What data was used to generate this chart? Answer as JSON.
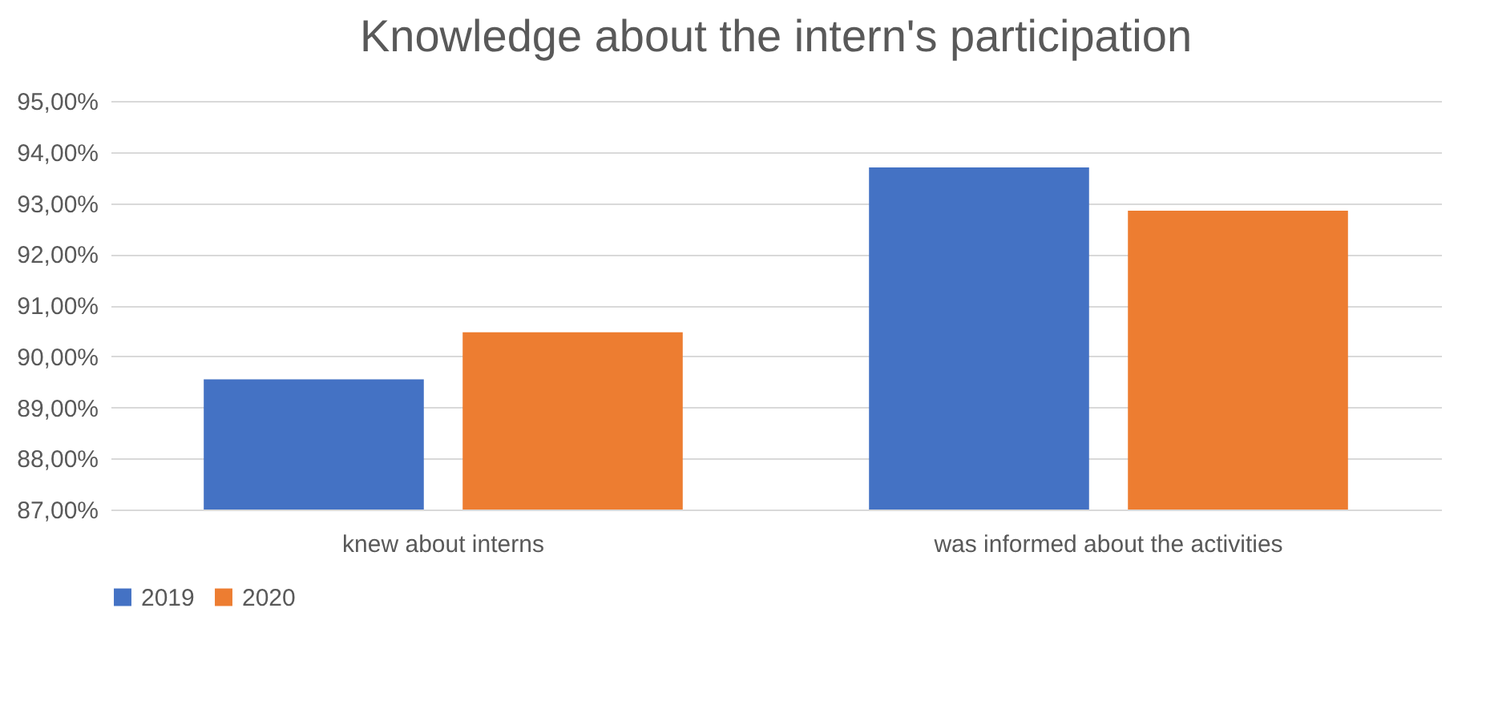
{
  "chart_data": {
    "type": "bar",
    "title": "Knowledge about the intern's participation",
    "categories": [
      "knew about interns",
      "was informed about the activities"
    ],
    "series": [
      {
        "name": "2019",
        "color": "#4472c4",
        "values": [
          89.55,
          93.7
        ]
      },
      {
        "name": "2020",
        "color": "#ed7d31",
        "values": [
          90.47,
          92.85
        ]
      }
    ],
    "ylim": [
      87,
      95
    ],
    "yticks": [
      {
        "value": 87,
        "label": "87,00%"
      },
      {
        "value": 88,
        "label": "88,00%"
      },
      {
        "value": 89,
        "label": "89,00%"
      },
      {
        "value": 90,
        "label": "90,00%"
      },
      {
        "value": 91,
        "label": "91,00%"
      },
      {
        "value": 92,
        "label": "92,00%"
      },
      {
        "value": 93,
        "label": "93,00%"
      },
      {
        "value": 94,
        "label": "94,00%"
      },
      {
        "value": 95,
        "label": "95,00%"
      }
    ],
    "grid": "y",
    "legend": "bottom"
  }
}
